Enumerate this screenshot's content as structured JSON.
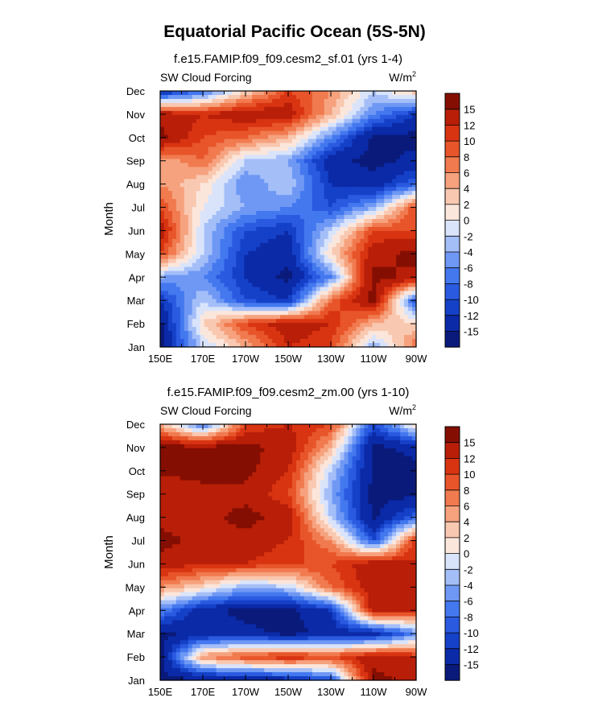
{
  "title": "Equatorial Pacific Ocean (5S-5N)",
  "panel_subtitles": [
    "f.e15.FAMIP.f09_f09.cesm2_sf.01 (yrs 1-4)",
    "f.e15.FAMIP.f09_f09.cesm2_zm.00 (yrs 1-10)"
  ],
  "panel_left_label": "SW Cloud Forcing",
  "panel_units_base": "W/m",
  "panel_units_sup": "2",
  "ylabel": "Month",
  "chart_data": [
    {
      "type": "heatmap",
      "title": "f.e15.FAMIP.f09_f09.cesm2_sf.01 (yrs 1-4)",
      "left_label": "SW Cloud Forcing",
      "units": "W/m2",
      "xlabel": "",
      "ylabel": "Month",
      "x_ticks": [
        "150E",
        "170E",
        "170W",
        "150W",
        "130W",
        "110W",
        "90W"
      ],
      "y_ticks": [
        "Jan",
        "Feb",
        "Mar",
        "Apr",
        "May",
        "Jun",
        "Jul",
        "Aug",
        "Sep",
        "Oct",
        "Nov",
        "Dec"
      ],
      "x": [
        150,
        170,
        190,
        210,
        230,
        250,
        270
      ],
      "y": [
        "Jan",
        "Feb",
        "Mar",
        "Apr",
        "May",
        "Jun",
        "Jul",
        "Aug",
        "Sep",
        "Oct",
        "Nov",
        "Dec"
      ],
      "z": [
        [
          -16,
          -2,
          4,
          12,
          10,
          -4,
          8
        ],
        [
          -16,
          2,
          10,
          14,
          12,
          4,
          2
        ],
        [
          -12,
          -2,
          -10,
          -12,
          8,
          16,
          -10
        ],
        [
          -4,
          -6,
          -12,
          -16,
          -6,
          16,
          14
        ],
        [
          10,
          -2,
          -12,
          -14,
          2,
          14,
          16
        ],
        [
          14,
          -2,
          -10,
          -12,
          -2,
          10,
          10
        ],
        [
          10,
          0,
          -4,
          -6,
          -10,
          -4,
          10
        ],
        [
          6,
          2,
          -6,
          -2,
          -12,
          -14,
          -8
        ],
        [
          4,
          8,
          -2,
          -4,
          -14,
          -16,
          -14
        ],
        [
          16,
          10,
          8,
          4,
          -6,
          -16,
          -16
        ],
        [
          14,
          12,
          14,
          14,
          4,
          -6,
          -12
        ],
        [
          -14,
          -8,
          2,
          10,
          6,
          -2,
          4
        ]
      ],
      "colorbar_labels": [
        "15",
        "12",
        "10",
        "8",
        "6",
        "4",
        "2",
        "0",
        "-2",
        "-4",
        "-6",
        "-8",
        "-10",
        "-12",
        "-15"
      ]
    },
    {
      "type": "heatmap",
      "title": "f.e15.FAMIP.f09_f09.cesm2_zm.00 (yrs 1-10)",
      "left_label": "SW Cloud Forcing",
      "units": "W/m2",
      "xlabel": "",
      "ylabel": "Month",
      "x_ticks": [
        "150E",
        "170E",
        "170W",
        "150W",
        "130W",
        "110W",
        "90W"
      ],
      "y_ticks": [
        "Jan",
        "Feb",
        "Mar",
        "Apr",
        "May",
        "Jun",
        "Jul",
        "Aug",
        "Sep",
        "Oct",
        "Nov",
        "Dec"
      ],
      "x": [
        150,
        170,
        190,
        210,
        230,
        250,
        270
      ],
      "y": [
        "Jan",
        "Feb",
        "Mar",
        "Apr",
        "May",
        "Jun",
        "Jul",
        "Aug",
        "Sep",
        "Oct",
        "Nov",
        "Dec"
      ],
      "z": [
        [
          -16,
          -16,
          -16,
          -14,
          -10,
          16,
          14
        ],
        [
          -16,
          6,
          10,
          12,
          10,
          14,
          12
        ],
        [
          -16,
          -14,
          -14,
          -16,
          -14,
          -14,
          -6
        ],
        [
          -6,
          -14,
          -16,
          -16,
          -12,
          14,
          12
        ],
        [
          6,
          2,
          -4,
          -2,
          8,
          14,
          14
        ],
        [
          14,
          12,
          12,
          10,
          10,
          14,
          12
        ],
        [
          16,
          14,
          14,
          12,
          6,
          -10,
          12
        ],
        [
          14,
          14,
          16,
          14,
          -2,
          -16,
          -8
        ],
        [
          12,
          14,
          14,
          10,
          -4,
          -16,
          -16
        ],
        [
          16,
          16,
          16,
          12,
          -2,
          -16,
          -16
        ],
        [
          16,
          16,
          16,
          14,
          4,
          -16,
          -14
        ],
        [
          4,
          -8,
          10,
          12,
          10,
          -10,
          2
        ]
      ],
      "colorbar_labels": [
        "15",
        "12",
        "10",
        "8",
        "6",
        "4",
        "2",
        "0",
        "-2",
        "-4",
        "-6",
        "-8",
        "-10",
        "-12",
        "-15"
      ]
    }
  ],
  "colors": {
    "background": "#ffffff",
    "text": "#000000"
  }
}
